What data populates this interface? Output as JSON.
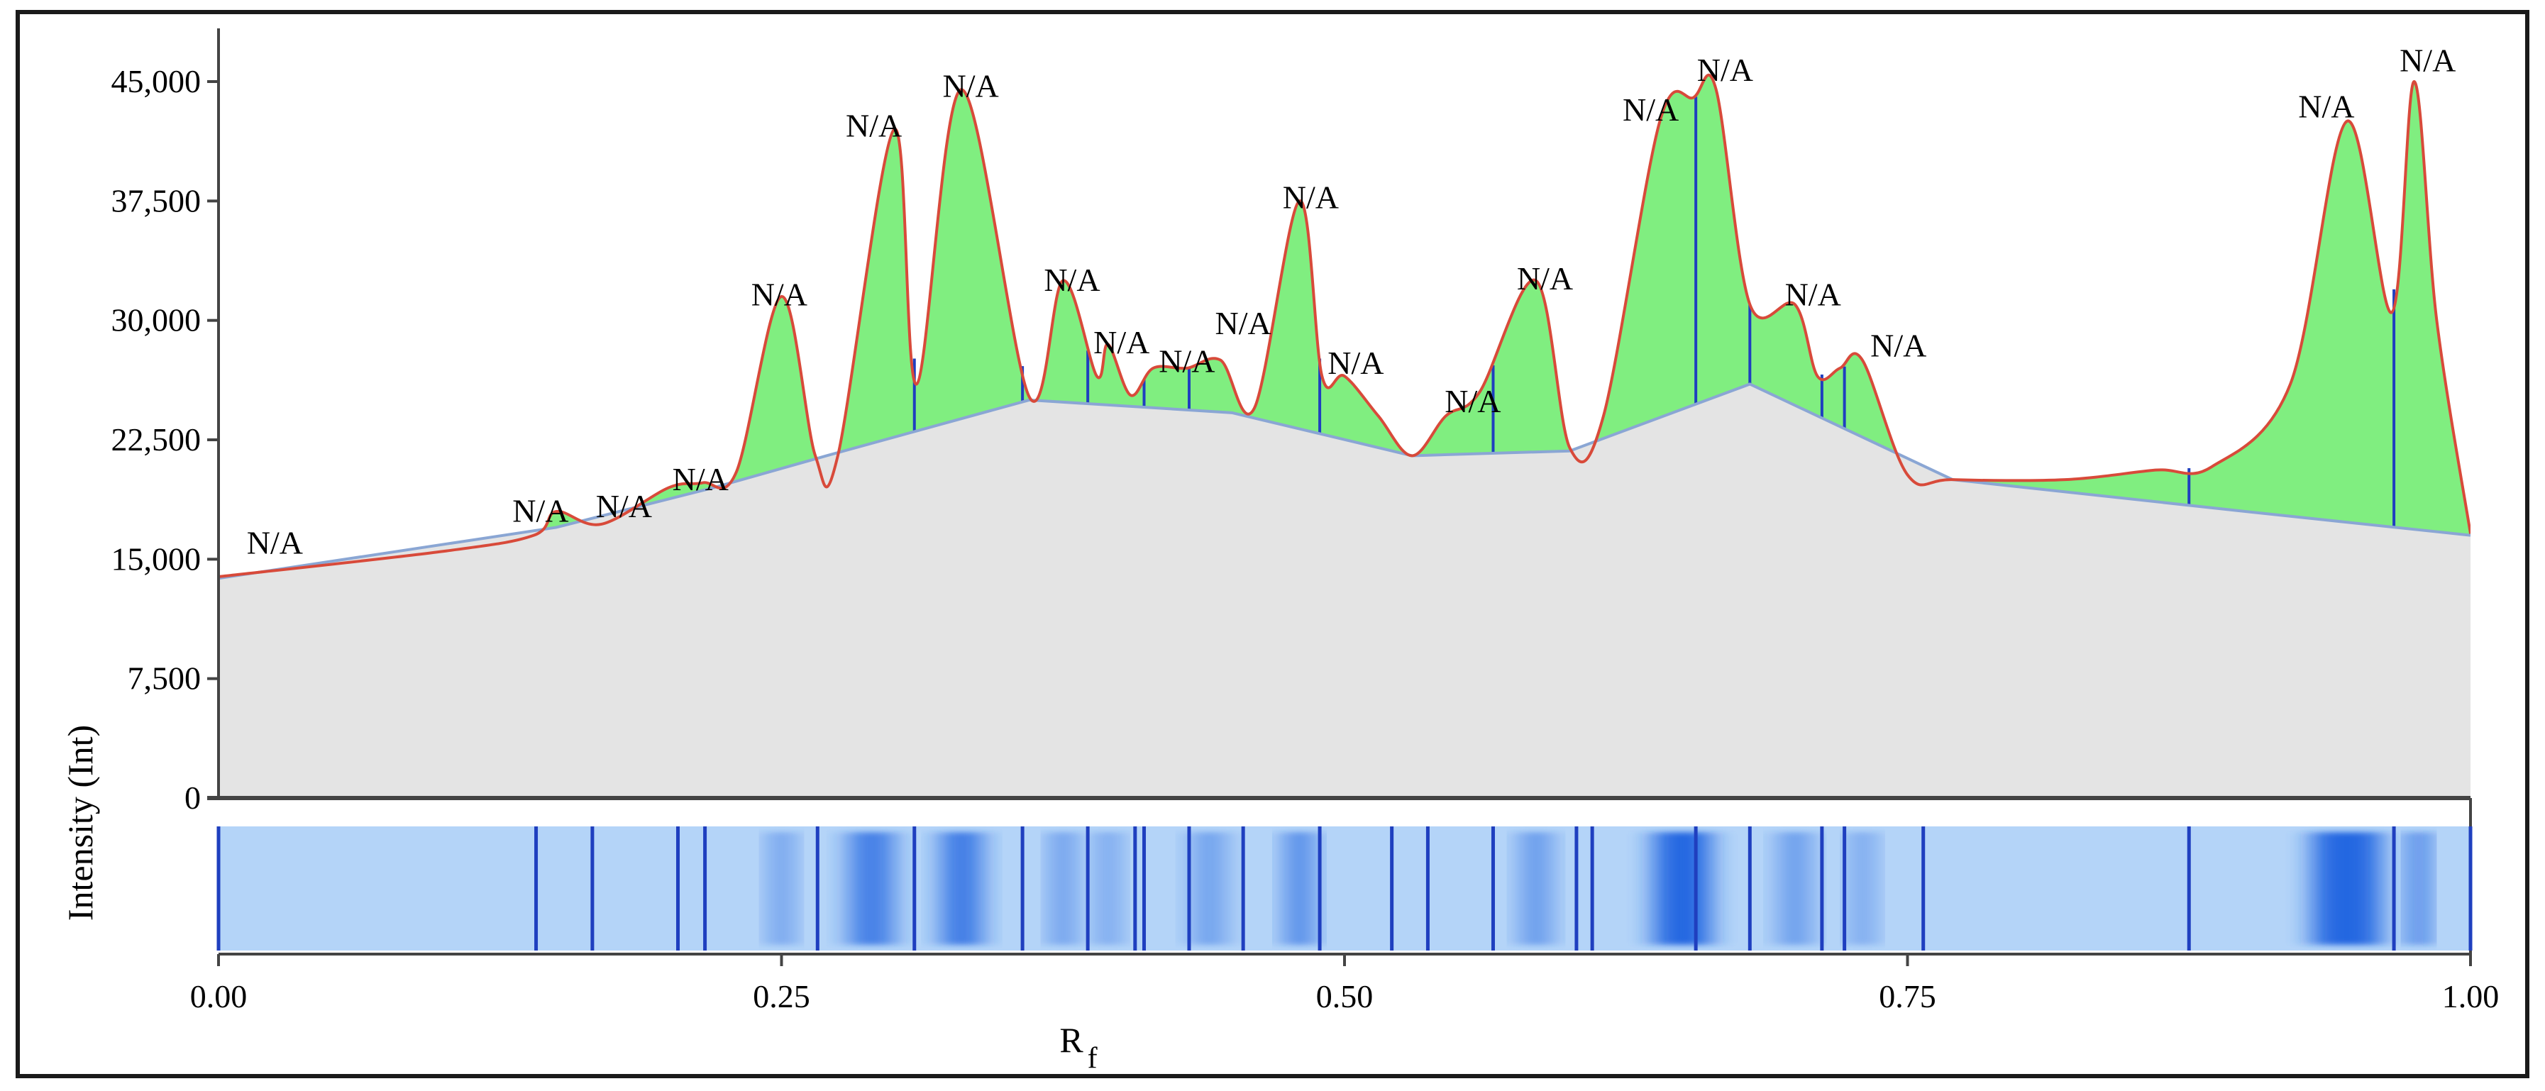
{
  "chart_data": {
    "type": "area",
    "ylabel": "Intensity (Int)",
    "xlabel": "R",
    "xlabel_subscript": "f",
    "xlim": [
      0,
      1
    ],
    "ylim": [
      0,
      45000
    ],
    "x_ticks": [
      0.0,
      0.25,
      0.5,
      0.75,
      1.0
    ],
    "x_tick_labels": [
      "0.00",
      "0.25",
      "0.50",
      "0.75",
      "1.00"
    ],
    "y_ticks": [
      0,
      7500,
      15000,
      22500,
      30000,
      37500,
      45000
    ],
    "y_tick_labels": [
      "0",
      "7,500",
      "15,000",
      "22,500",
      "30,000",
      "37,500",
      "45,000"
    ],
    "colors": {
      "baseline_fill": "#e4e4e4",
      "peak_fill": "#80ee80",
      "signal_line": "#d84a3a",
      "baseline_line": "#8aa6d4",
      "band_light": "#b4d4f8",
      "band_dark": "#1e62e0",
      "separator": "#1f3fbf"
    },
    "baseline": {
      "x": [
        0.0,
        0.15,
        0.22,
        0.27,
        0.36,
        0.45,
        0.53,
        0.6,
        0.68,
        0.77,
        0.9,
        1.0
      ],
      "y": [
        13800,
        17000,
        19500,
        21500,
        25000,
        24200,
        21500,
        21800,
        26000,
        20000,
        18000,
        16500
      ]
    },
    "signal": {
      "x": [
        0.0,
        0.1,
        0.14,
        0.15,
        0.17,
        0.2,
        0.215,
        0.23,
        0.25,
        0.265,
        0.275,
        0.3,
        0.31,
        0.33,
        0.36,
        0.375,
        0.39,
        0.395,
        0.405,
        0.415,
        0.43,
        0.445,
        0.46,
        0.48,
        0.49,
        0.5,
        0.515,
        0.53,
        0.545,
        0.56,
        0.585,
        0.6,
        0.615,
        0.64,
        0.655,
        0.665,
        0.68,
        0.7,
        0.71,
        0.72,
        0.73,
        0.75,
        0.77,
        0.82,
        0.86,
        0.885,
        0.92,
        0.945,
        0.965,
        0.975,
        0.985,
        1.0
      ],
      "y": [
        13900,
        15500,
        16500,
        18000,
        17200,
        19500,
        19800,
        20500,
        31500,
        21500,
        21500,
        42000,
        26000,
        44500,
        25200,
        32500,
        26500,
        28500,
        25300,
        27000,
        27000,
        27500,
        24500,
        37500,
        26500,
        26500,
        24000,
        21500,
        24000,
        25500,
        32500,
        22000,
        24000,
        42500,
        44000,
        44500,
        31000,
        31000,
        26500,
        27000,
        27500,
        20300,
        20000,
        20000,
        20600,
        20800,
        26000,
        42500,
        30500,
        45000,
        30000,
        16600
      ]
    },
    "separators": [
      0.0,
      0.141,
      0.166,
      0.204,
      0.216,
      0.266,
      0.309,
      0.357,
      0.386,
      0.407,
      0.411,
      0.431,
      0.455,
      0.489,
      0.521,
      0.537,
      0.566,
      0.603,
      0.61,
      0.656,
      0.68,
      0.712,
      0.722,
      0.757,
      0.875,
      0.966,
      1.0
    ],
    "bands": [
      {
        "x": 0.29,
        "width": 0.02,
        "intensity": 0.75
      },
      {
        "x": 0.33,
        "width": 0.018,
        "intensity": 0.8
      },
      {
        "x": 0.375,
        "width": 0.01,
        "intensity": 0.55
      },
      {
        "x": 0.395,
        "width": 0.01,
        "intensity": 0.45
      },
      {
        "x": 0.44,
        "width": 0.015,
        "intensity": 0.45
      },
      {
        "x": 0.48,
        "width": 0.012,
        "intensity": 0.7
      },
      {
        "x": 0.585,
        "width": 0.013,
        "intensity": 0.55
      },
      {
        "x": 0.65,
        "width": 0.025,
        "intensity": 0.95
      },
      {
        "x": 0.7,
        "width": 0.014,
        "intensity": 0.5
      },
      {
        "x": 0.73,
        "width": 0.01,
        "intensity": 0.45
      },
      {
        "x": 0.25,
        "width": 0.01,
        "intensity": 0.5
      },
      {
        "x": 0.945,
        "width": 0.03,
        "intensity": 0.95
      },
      {
        "x": 0.977,
        "width": 0.008,
        "intensity": 0.85
      }
    ],
    "annotations": [
      {
        "text": "N/A",
        "x": 0.025,
        "y": 14900
      },
      {
        "text": "N/A",
        "x": 0.143,
        "y": 16900
      },
      {
        "text": "N/A",
        "x": 0.18,
        "y": 17200
      },
      {
        "text": "N/A",
        "x": 0.214,
        "y": 18900
      },
      {
        "text": "N/A",
        "x": 0.249,
        "y": 30500
      },
      {
        "text": "N/A",
        "x": 0.291,
        "y": 41100
      },
      {
        "text": "N/A",
        "x": 0.334,
        "y": 43600
      },
      {
        "text": "N/A",
        "x": 0.379,
        "y": 31400
      },
      {
        "text": "N/A",
        "x": 0.401,
        "y": 27500
      },
      {
        "text": "N/A",
        "x": 0.43,
        "y": 26300
      },
      {
        "text": "N/A",
        "x": 0.455,
        "y": 28700
      },
      {
        "text": "N/A",
        "x": 0.485,
        "y": 36600
      },
      {
        "text": "N/A",
        "x": 0.505,
        "y": 26200
      },
      {
        "text": "N/A",
        "x": 0.557,
        "y": 23800
      },
      {
        "text": "N/A",
        "x": 0.589,
        "y": 31500
      },
      {
        "text": "N/A",
        "x": 0.636,
        "y": 42100
      },
      {
        "text": "N/A",
        "x": 0.669,
        "y": 44600
      },
      {
        "text": "N/A",
        "x": 0.708,
        "y": 30500
      },
      {
        "text": "N/A",
        "x": 0.746,
        "y": 27300
      },
      {
        "text": "N/A",
        "x": 0.936,
        "y": 42300
      },
      {
        "text": "N/A",
        "x": 0.981,
        "y": 45200
      }
    ]
  }
}
